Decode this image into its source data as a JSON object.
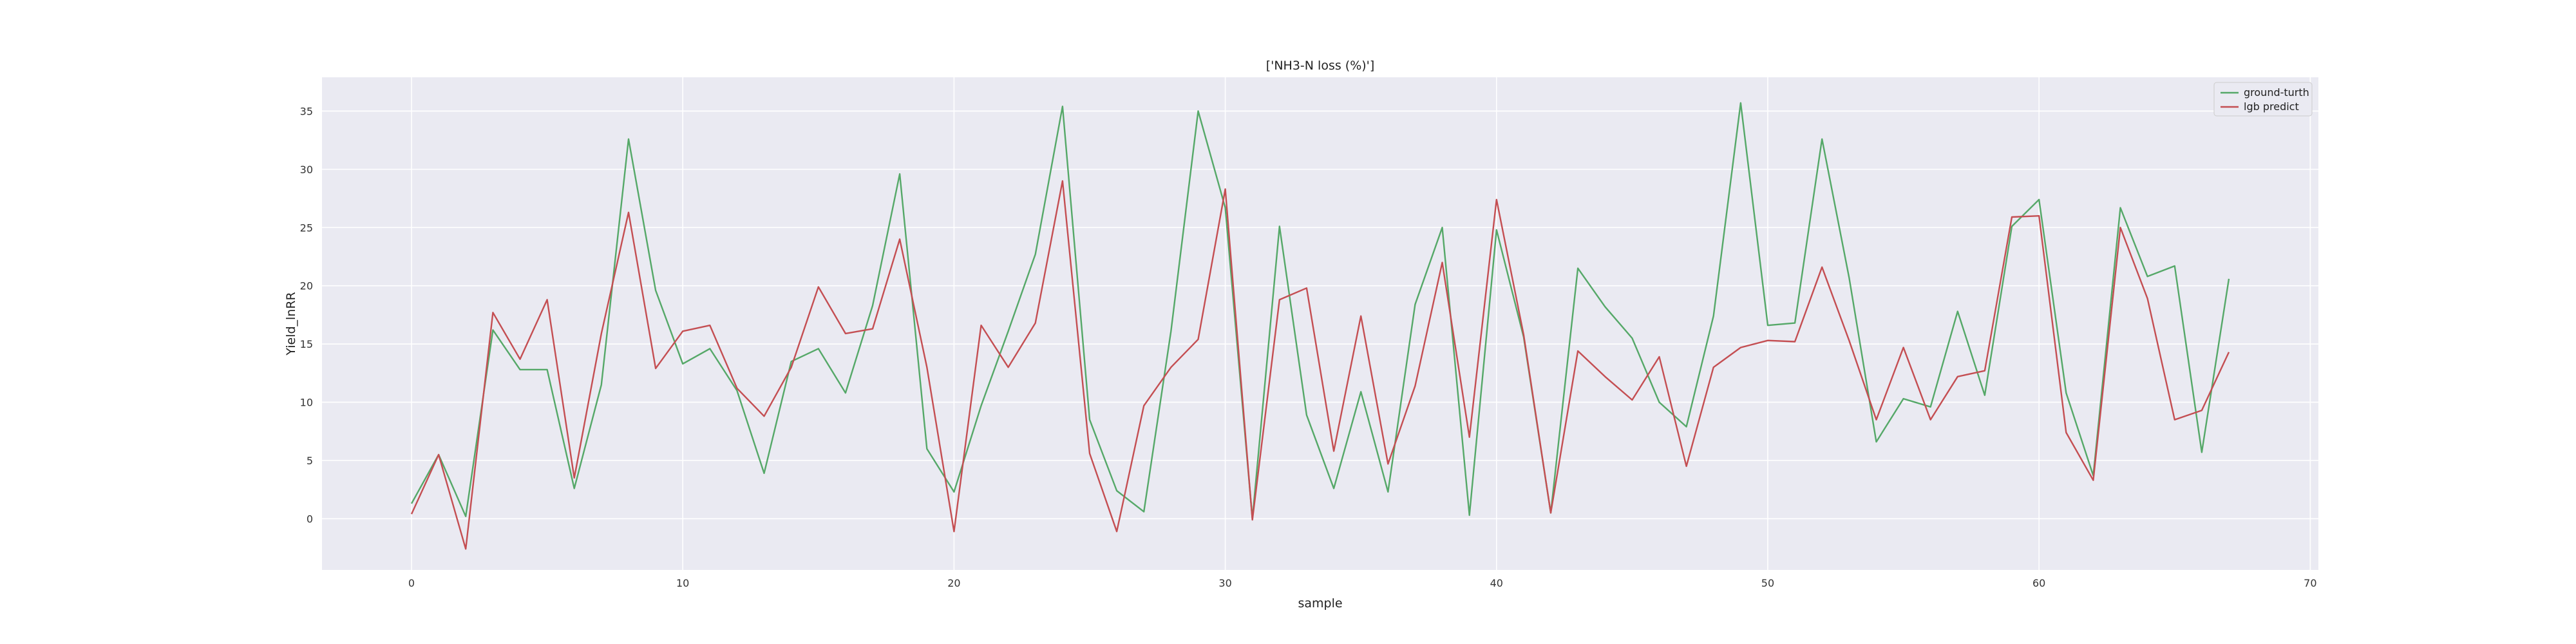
{
  "chart_data": {
    "type": "line",
    "title": "['NH3-N loss (%)']",
    "xlabel": "sample",
    "ylabel": "Yield_lnRR",
    "xlim": [
      -3.3,
      70.3
    ],
    "ylim": [
      -4.4,
      37.9
    ],
    "xticks": [
      0,
      10,
      20,
      30,
      40,
      50,
      60,
      70
    ],
    "yticks": [
      0,
      5,
      10,
      15,
      20,
      25,
      30,
      35
    ],
    "grid": true,
    "legend_position": "top-right",
    "x": [
      0,
      1,
      2,
      3,
      4,
      5,
      6,
      7,
      8,
      9,
      10,
      11,
      12,
      13,
      14,
      15,
      16,
      17,
      18,
      19,
      20,
      21,
      22,
      23,
      24,
      25,
      26,
      27,
      28,
      29,
      30,
      31,
      32,
      33,
      34,
      35,
      36,
      37,
      38,
      39,
      40,
      41,
      42,
      43,
      44,
      45,
      46,
      47,
      48,
      49,
      50,
      51,
      52,
      53,
      54,
      55,
      56,
      57,
      58,
      59,
      60,
      61,
      62,
      63,
      64,
      65,
      66,
      67
    ],
    "series": [
      {
        "name": "ground-turth",
        "color": "#55a868",
        "values": [
          1.3,
          5.5,
          0.2,
          16.2,
          12.8,
          12.8,
          2.6,
          11.5,
          32.6,
          19.6,
          13.3,
          14.6,
          11,
          3.9,
          13.5,
          14.6,
          10.8,
          18.3,
          29.6,
          6,
          2.3,
          9.7,
          16.1,
          22.7,
          35.4,
          8.5,
          2.4,
          0.6,
          16.1,
          35,
          26.7,
          0,
          25.1,
          8.9,
          2.6,
          10.9,
          2.3,
          18.4,
          25,
          0.3,
          24.8,
          15.6,
          0.5,
          21.5,
          18.2,
          15.5,
          10,
          7.9,
          17.4,
          35.7,
          16.6,
          16.8,
          32.6,
          20.7,
          6.6,
          10.3,
          9.6,
          17.8,
          10.6,
          25.1,
          27.4,
          10.8,
          3.7,
          26.7,
          20.8,
          21.7,
          5.7,
          20.6
        ]
      },
      {
        "name": "lgb predict",
        "color": "#c44e52",
        "values": [
          0.4,
          5.5,
          -2.6,
          17.7,
          13.7,
          18.8,
          3.5,
          15.9,
          26.3,
          12.9,
          16.1,
          16.6,
          11.2,
          8.8,
          13,
          19.9,
          15.9,
          16.3,
          24,
          13,
          -1.1,
          16.6,
          13,
          16.8,
          29,
          5.6,
          -1.1,
          9.7,
          13,
          15.4,
          28.3,
          -0.1,
          18.8,
          19.8,
          5.8,
          17.4,
          4.7,
          11.4,
          22,
          7,
          27.4,
          15.8,
          0.5,
          14.4,
          12.2,
          10.2,
          13.9,
          4.5,
          13,
          14.7,
          15.3,
          15.2,
          21.6,
          15.3,
          8.5,
          14.7,
          8.5,
          12.2,
          12.7,
          25.9,
          26,
          7.4,
          3.3,
          25,
          18.9,
          8.5,
          9.3,
          14.3
        ]
      }
    ]
  },
  "colors": {
    "plot_background": "#eaeaf2",
    "grid": "#ffffff"
  }
}
